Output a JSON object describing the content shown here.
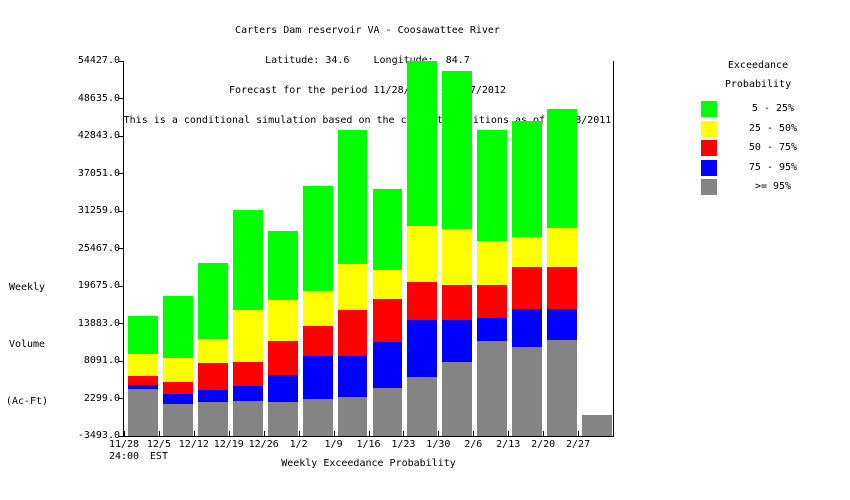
{
  "header": {
    "line1": "Carters Dam reservoir VA - Coosawattee River",
    "line2": "Latitude: 34.6    Longitude:  84.7",
    "line3": "Forecast for the period 11/28/2011 - 2/27/2012",
    "line4": "This is a conditional simulation based on the current conditions as of 11/28/2011"
  },
  "y_axis": {
    "title_lines": [
      "Weekly",
      "Volume",
      "(Ac-Ft)"
    ],
    "tick_labels": [
      "54427.0",
      "48635.0",
      "42843.0",
      "37051.0",
      "31259.0",
      "25467.0",
      "19675.0",
      "13883.0",
      "8091.0",
      "2299.0",
      "-3493.0"
    ]
  },
  "x_axis": {
    "title": "Weekly Exceedance Probability",
    "labels": [
      "11/28",
      "12/5",
      "12/12",
      "12/19",
      "12/26",
      "1/2",
      "1/9",
      "1/16",
      "1/23",
      "1/30",
      "2/6",
      "2/13",
      "2/20",
      "2/27"
    ],
    "sub_labels": [
      "24:00",
      "EST",
      "",
      "",
      "",
      "",
      "",
      "",
      "",
      "",
      "",
      "",
      "",
      ""
    ]
  },
  "legend": {
    "title_line1": "Exceedance",
    "title_line2": "Probability",
    "items": [
      {
        "label": "5 - 25%",
        "color": "#00ff00"
      },
      {
        "label": "25 - 50%",
        "color": "#ffff00"
      },
      {
        "label": "50 - 75%",
        "color": "#ff0000"
      },
      {
        "label": "75 - 95%",
        "color": "#0000ff"
      },
      {
        "label": ">= 95%",
        "color": "#848484"
      }
    ]
  },
  "chart_data": {
    "type": "bar",
    "subtype": "stacked",
    "title": "Carters Dam reservoir VA - Coosawattee River",
    "xlabel": "Weekly Exceedance Probability",
    "ylabel": "Weekly Volume (Ac-Ft)",
    "ylim": [
      -3493,
      54427
    ],
    "y_tick_step": 5792,
    "grid": false,
    "legend_position": "right",
    "baseline": -3493,
    "categories": [
      "11/28",
      "12/5",
      "12/12",
      "12/19",
      "12/26",
      "1/2",
      "1/9",
      "1/16",
      "1/23",
      "1/30",
      "2/6",
      "2/13",
      "2/20",
      "2/27"
    ],
    "series_note": "series listed bottom-to-top of stack; values are cumulative segment tops in Ac-Ft, bars rise from baseline -3493",
    "series": [
      {
        "name": ">= 95%",
        "color": "#848484",
        "cumulative_tops": [
          3800,
          1500,
          1800,
          1900,
          1800,
          2300,
          2500,
          4000,
          5600,
          8000,
          11200,
          10300,
          11400,
          -300
        ]
      },
      {
        "name": "75 - 95%",
        "color": "#0000ff",
        "cumulative_tops": [
          4400,
          3000,
          3600,
          4200,
          5900,
          8800,
          8800,
          11000,
          14400,
          14400,
          14800,
          16100,
          16100,
          -300
        ]
      },
      {
        "name": "50 - 75%",
        "color": "#ff0000",
        "cumulative_tops": [
          5800,
          4800,
          7800,
          8000,
          11200,
          13500,
          16000,
          17600,
          20300,
          19800,
          19900,
          22600,
          22600,
          -300
        ]
      },
      {
        "name": "25 - 50%",
        "color": "#ffff00",
        "cumulative_tops": [
          9100,
          8500,
          11500,
          15900,
          17500,
          18900,
          23100,
          22100,
          29000,
          28500,
          26700,
          27200,
          28600,
          -300
        ]
      },
      {
        "name": "5 - 25%",
        "color": "#00ff00",
        "cumulative_tops": [
          15100,
          18200,
          23200,
          31400,
          28200,
          35200,
          43800,
          34600,
          54400,
          52900,
          43700,
          45100,
          47000,
          -300
        ]
      }
    ]
  }
}
